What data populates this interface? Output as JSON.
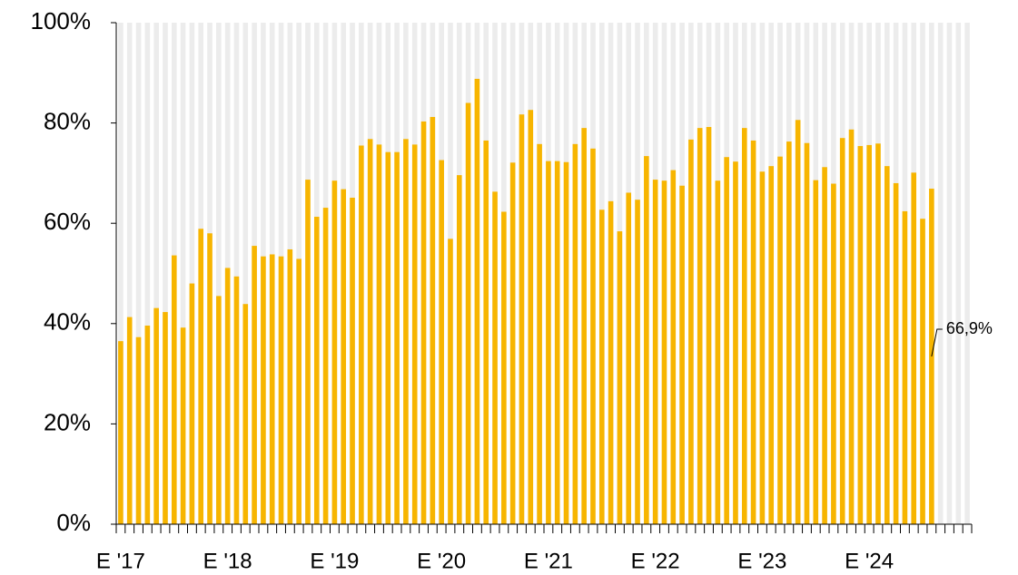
{
  "chart_data": {
    "type": "bar",
    "categories": [
      "E '17",
      null,
      null,
      null,
      null,
      null,
      null,
      null,
      null,
      null,
      null,
      null,
      "E '18",
      null,
      null,
      null,
      null,
      null,
      null,
      null,
      null,
      null,
      null,
      null,
      "E '19",
      null,
      null,
      null,
      null,
      null,
      null,
      null,
      null,
      null,
      null,
      null,
      "E '20",
      null,
      null,
      null,
      null,
      null,
      null,
      null,
      null,
      null,
      null,
      null,
      "E '21",
      null,
      null,
      null,
      null,
      null,
      null,
      null,
      null,
      null,
      null,
      null,
      "E '22",
      null,
      null,
      null,
      null,
      null,
      null,
      null,
      null,
      null,
      null,
      null,
      "E '23",
      null,
      null,
      null,
      null,
      null,
      null,
      null,
      null,
      null,
      null,
      null,
      "E '24",
      null,
      null,
      null,
      null,
      null,
      null,
      null,
      null,
      null,
      null,
      null
    ],
    "values": [
      36.5,
      41.3,
      37.3,
      39.6,
      43.1,
      42.3,
      53.6,
      39.2,
      48,
      58.9,
      58,
      45.5,
      51.1,
      49.4,
      43.9,
      55.5,
      53.4,
      53.8,
      53.4,
      54.8,
      52.9,
      68.7,
      61.3,
      63.1,
      68.5,
      66.8,
      65.1,
      75.5,
      76.8,
      75.7,
      74.2,
      74.2,
      76.8,
      75.7,
      80.3,
      81.2,
      72.6,
      56.9,
      69.6,
      84,
      88.8,
      76.5,
      66.3,
      62.3,
      72.1,
      81.7,
      82.6,
      75.8,
      72.4,
      72.4,
      72.2,
      75.8,
      79,
      74.9,
      62.7,
      64.4,
      58.4,
      66.1,
      64.7,
      73.4,
      68.7,
      68.5,
      70.6,
      67.5,
      76.7,
      79,
      79.2,
      68.5,
      73.2,
      72.3,
      79,
      76.5,
      70.3,
      71.4,
      73.3,
      76.3,
      80.6,
      76,
      68.6,
      71.2,
      67.9,
      77,
      78.7,
      75.4,
      75.6,
      75.9,
      71.4,
      68,
      62.4,
      70.1,
      60.9,
      66.9,
      null,
      null,
      null,
      null
    ],
    "value_labels": [
      null,
      null,
      null,
      null,
      null,
      null,
      null,
      null,
      null,
      null,
      null,
      null,
      null,
      null,
      null,
      null,
      null,
      null,
      null,
      null,
      null,
      null,
      null,
      null,
      null,
      null,
      null,
      null,
      null,
      null,
      null,
      null,
      null,
      null,
      null,
      null,
      null,
      null,
      null,
      null,
      null,
      null,
      null,
      null,
      null,
      null,
      null,
      null,
      null,
      null,
      null,
      null,
      null,
      null,
      null,
      null,
      null,
      null,
      null,
      null,
      null,
      null,
      null,
      null,
      null,
      null,
      null,
      null,
      null,
      null,
      null,
      null,
      null,
      null,
      null,
      null,
      null,
      null,
      null,
      null,
      null,
      null,
      null,
      null,
      null,
      null,
      null,
      null,
      null,
      null,
      null,
      "66,9%",
      null,
      null,
      null,
      null
    ],
    "color": "#f7b500",
    "band_color": "#ececec",
    "ylim": [
      0,
      100
    ],
    "yticks": [
      {
        "value": 0,
        "label": "0%"
      },
      {
        "value": 20,
        "label": "20%"
      },
      {
        "value": 40,
        "label": "40%"
      },
      {
        "value": 60,
        "label": "60%"
      },
      {
        "value": 80,
        "label": "80%"
      },
      {
        "value": 100,
        "label": "100%"
      }
    ]
  }
}
